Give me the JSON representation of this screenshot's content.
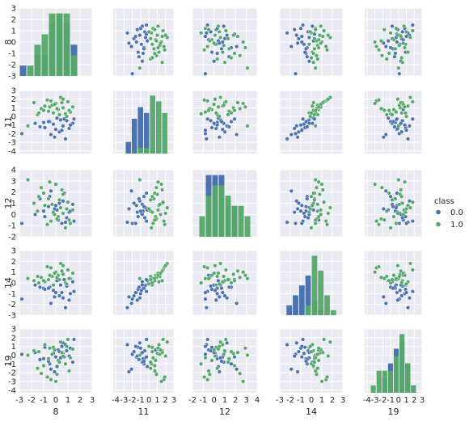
{
  "colors": {
    "panel_bg": "#EAEAF2",
    "grid": "#FFFFFF",
    "class0": "#4C72B0",
    "class1": "#55A868",
    "text": "#262626"
  },
  "chart_data": {
    "type": "scatter",
    "title": "",
    "variables": [
      "8",
      "11",
      "12",
      "14",
      "19"
    ],
    "hue": "class",
    "legend": {
      "title": "class",
      "entries": [
        "0.0",
        "1.0"
      ],
      "placement": "center-right"
    },
    "grid": true,
    "axes": [
      {
        "var": "8",
        "lim": [
          -3,
          3
        ],
        "ticks": [
          "-3",
          "-2",
          "-1",
          "0",
          "1",
          "2",
          "3"
        ]
      },
      {
        "var": "11",
        "lim": [
          -4.3,
          3
        ],
        "ticks": [
          "-4",
          "-3",
          "-2",
          "-1",
          "0",
          "1",
          "2",
          "3"
        ]
      },
      {
        "var": "12",
        "lim": [
          -2,
          4
        ],
        "ticks": [
          "-2",
          "-1",
          "0",
          "1",
          "2",
          "3",
          "4"
        ]
      },
      {
        "var": "14",
        "lim": [
          -3,
          3
        ],
        "ticks": [
          "-3",
          "-2",
          "-1",
          "0",
          "1",
          "2",
          "3"
        ]
      },
      {
        "var": "19",
        "lim": [
          -4.3,
          3
        ],
        "ticks": [
          "-4",
          "-3",
          "-2",
          "-1",
          "0",
          "1",
          "2",
          "3"
        ]
      }
    ],
    "diagonal": "histogram",
    "offdiagonal": "scatter",
    "series": [
      {
        "name": "0.0",
        "points": [
          [
            -2.8,
            -2.0,
            -0.8,
            -1.5,
            0.1
          ],
          [
            -1.0,
            -0.7,
            0.3,
            -0.5,
            -0.4
          ],
          [
            -0.5,
            -0.6,
            1.6,
            -0.4,
            -1.0
          ],
          [
            -0.2,
            -0.9,
            0.1,
            -0.7,
            0.2
          ],
          [
            0.0,
            -1.5,
            0.8,
            -0.9,
            -0.2
          ],
          [
            0.2,
            0.8,
            -0.5,
            0.7,
            0.6
          ],
          [
            0.4,
            -0.4,
            0.6,
            -0.2,
            -0.3
          ],
          [
            0.6,
            -1.1,
            1.2,
            -1.4,
            1.4
          ],
          [
            0.8,
            -2.6,
            -0.7,
            -2.3,
            1.2
          ],
          [
            1.1,
            -1.4,
            0.2,
            -1.6,
            -0.1
          ],
          [
            1.4,
            -0.8,
            0.9,
            0.1,
            -0.8
          ],
          [
            1.5,
            -0.3,
            -0.6,
            -0.8,
            1.8
          ],
          [
            -0.9,
            -1.3,
            -0.2,
            -0.6,
            0.9
          ],
          [
            -0.4,
            -2.1,
            2.1,
            -1.9,
            -1.6
          ],
          [
            0.1,
            -0.2,
            0.4,
            0.2,
            -1.3
          ],
          [
            0.3,
            -1.8,
            1.0,
            -1.2,
            0.4
          ],
          [
            0.9,
            -0.5,
            -0.3,
            -0.3,
            0.5
          ],
          [
            1.2,
            -1.0,
            0.3,
            -1.0,
            0.8
          ],
          [
            -1.3,
            -1.2,
            1.4,
            -0.4,
            -0.5
          ],
          [
            -0.6,
            -0.6,
            0.7,
            -0.5,
            -0.7
          ],
          [
            0.5,
            -1.6,
            -0.8,
            -0.9,
            1.0
          ],
          [
            -0.1,
            -2.4,
            0.5,
            -1.3,
            -1.9
          ],
          [
            0.7,
            -0.3,
            1.9,
            0.3,
            -0.2
          ],
          [
            -1.7,
            -0.8,
            0.0,
            -0.2,
            0.3
          ]
        ]
      },
      {
        "name": "1.0",
        "points": [
          [
            -2.3,
            -1.1,
            3.1,
            0.4,
            0.0
          ],
          [
            -1.8,
            1.6,
            1.0,
            0.2,
            0.5
          ],
          [
            -1.5,
            0.2,
            0.3,
            0.6,
            -1.5
          ],
          [
            -1.2,
            0.9,
            2.4,
            0.5,
            -2.1
          ],
          [
            -0.9,
            1.2,
            0.8,
            0.1,
            1.2
          ],
          [
            -0.6,
            0.6,
            1.4,
            0.3,
            -0.4
          ],
          [
            -0.4,
            1.8,
            -0.6,
            1.4,
            -2.8
          ],
          [
            -0.2,
            0.4,
            0.2,
            -0.2,
            0.9
          ],
          [
            0.0,
            1.5,
            2.7,
            1.0,
            -3.0
          ],
          [
            0.2,
            0.8,
            -0.2,
            0.7,
            -0.6
          ],
          [
            0.4,
            2.2,
            0.6,
            1.8,
            1.5
          ],
          [
            0.6,
            1.0,
            1.8,
            0.8,
            0.2
          ],
          [
            0.8,
            0.3,
            -1.2,
            0.0,
            -1.0
          ],
          [
            1.0,
            1.7,
            1.1,
            1.2,
            1.8
          ],
          [
            1.2,
            0.5,
            -0.8,
            0.4,
            -0.3
          ],
          [
            1.4,
            1.1,
            0.4,
            0.9,
            0.7
          ],
          [
            -1.0,
            0.7,
            1.9,
            0.2,
            -1.2
          ],
          [
            -0.3,
            1.3,
            0.9,
            0.6,
            0.1
          ],
          [
            0.1,
            0.9,
            -0.4,
            0.5,
            -2.2
          ],
          [
            0.5,
            1.6,
            2.2,
            1.1,
            0.3
          ],
          [
            0.9,
            0.0,
            0.5,
            -0.1,
            1.0
          ],
          [
            -0.7,
            1.9,
            -0.9,
            1.5,
            -2.5
          ],
          [
            0.3,
            0.2,
            1.3,
            0.3,
            -0.8
          ],
          [
            -0.1,
            1.4,
            0.0,
            0.9,
            0.6
          ],
          [
            1.1,
            0.7,
            -0.5,
            0.4,
            -1.8
          ],
          [
            -1.4,
            0.4,
            1.6,
            0.0,
            0.4
          ],
          [
            0.6,
            2.0,
            0.1,
            1.6,
            -0.1
          ],
          [
            -0.5,
            1.1,
            2.9,
            0.7,
            0.8
          ]
        ]
      }
    ]
  }
}
